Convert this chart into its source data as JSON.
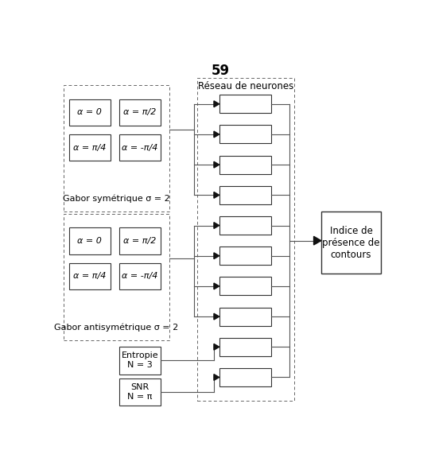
{
  "title": "59",
  "title_fontsize": 12,
  "title_fontweight": "bold",
  "background_color": "#ffffff",
  "fig_width": 5.42,
  "fig_height": 5.76,
  "dpi": 100,
  "gabor_sym_boxes": [
    {
      "label": "α = 0",
      "col": 0,
      "row": 0
    },
    {
      "label": "α = π/2",
      "col": 1,
      "row": 0
    },
    {
      "label": "α = π/4",
      "col": 0,
      "row": 1
    },
    {
      "label": "α = -π/4",
      "col": 1,
      "row": 1
    }
  ],
  "gabor_sym_label": "Gabor symétrique σ = 2",
  "gabor_antisym_boxes": [
    {
      "label": "α = 0",
      "col": 0,
      "row": 0
    },
    {
      "label": "α = π/2",
      "col": 1,
      "row": 0
    },
    {
      "label": "α = π/4",
      "col": 0,
      "row": 1
    },
    {
      "label": "α = -π/4",
      "col": 1,
      "row": 1
    }
  ],
  "gabor_antisym_label": "Gabor antisymétrique σ = 2",
  "entropie_label": "Entropie\nN = 3",
  "snr_label": "SNR\nN = π",
  "neuron_network_label": "Réseau de neurones",
  "output_label": "Indice de\nprésence de\ncontours"
}
